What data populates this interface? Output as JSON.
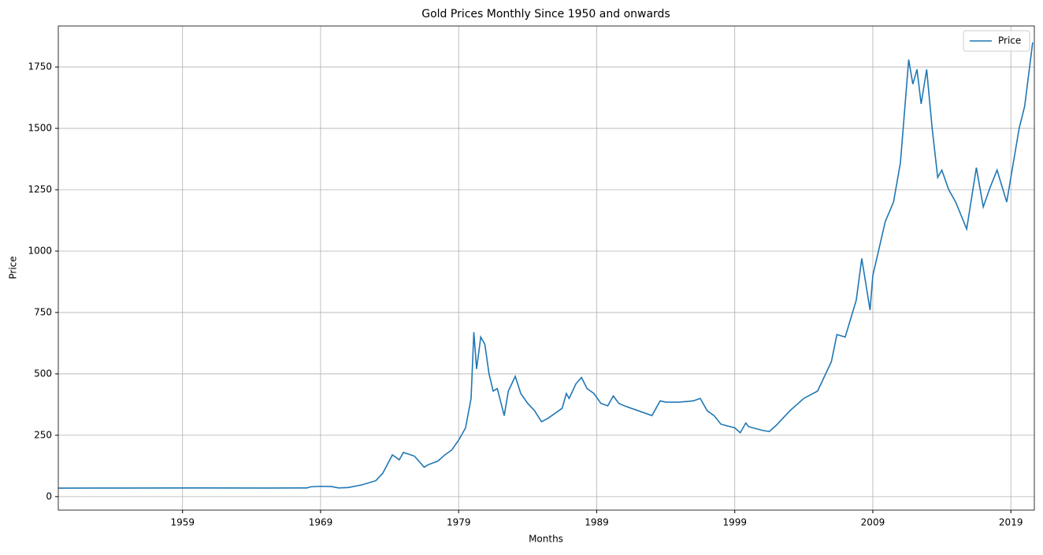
{
  "chart_data": {
    "type": "line",
    "title": "Gold Prices Monthly Since 1950 and onwards",
    "x_label": "Months",
    "y_label": "Price",
    "x": [
      1950,
      1955,
      1960,
      1965,
      1968,
      1968.3,
      1969,
      1969.8,
      1970.3,
      1971,
      1972,
      1973,
      1973.5,
      1974.2,
      1974.7,
      1975,
      1975.8,
      1976.5,
      1976.8,
      1977.5,
      1978,
      1978.5,
      1979,
      1979.5,
      1979.9,
      1980.1,
      1980.3,
      1980.6,
      1980.9,
      1981.2,
      1981.5,
      1981.8,
      1982.3,
      1982.6,
      1983.1,
      1983.5,
      1984,
      1984.5,
      1985,
      1985.5,
      1986,
      1986.5,
      1986.8,
      1987,
      1987.5,
      1987.9,
      1988.3,
      1988.8,
      1989.3,
      1989.8,
      1990.2,
      1990.6,
      1991,
      1992,
      1993,
      1993.6,
      1994,
      1995,
      1996,
      1996.5,
      1997,
      1997.5,
      1998,
      1999,
      1999.4,
      1999.8,
      2000,
      2001,
      2001.5,
      2002,
      2003,
      2004,
      2005,
      2006,
      2006.4,
      2007,
      2007.8,
      2008.2,
      2008.8,
      2009,
      2009.9,
      2010.5,
      2011,
      2011.6,
      2011.9,
      2012.2,
      2012.5,
      2012.9,
      2013.3,
      2013.7,
      2014,
      2014.5,
      2015,
      2015.8,
      2016.5,
      2017,
      2017.5,
      2018,
      2018.7,
      2019,
      2019.6,
      2020,
      2020.58
    ],
    "series": [
      {
        "name": "Price",
        "color": "#1f77b4",
        "values": [
          34.7,
          35,
          35.3,
          35.1,
          35.5,
          40,
          42,
          41,
          35.5,
          37,
          48,
          65,
          95,
          170,
          150,
          180,
          165,
          120,
          130,
          145,
          170,
          190,
          230,
          280,
          400,
          670,
          520,
          650,
          620,
          500,
          430,
          440,
          330,
          430,
          490,
          420,
          380,
          350,
          305,
          320,
          340,
          360,
          420,
          400,
          460,
          485,
          440,
          420,
          380,
          370,
          410,
          380,
          370,
          350,
          330,
          390,
          385,
          385,
          390,
          400,
          350,
          330,
          295,
          280,
          260,
          300,
          285,
          270,
          265,
          290,
          350,
          400,
          430,
          550,
          660,
          650,
          800,
          970,
          760,
          900,
          1120,
          1200,
          1360,
          1780,
          1680,
          1740,
          1600,
          1740,
          1500,
          1300,
          1330,
          1250,
          1200,
          1090,
          1340,
          1180,
          1260,
          1330,
          1200,
          1300,
          1500,
          1590,
          1850
        ]
      }
    ],
    "xlim": [
      1950,
      2020.7
    ],
    "xticks": [
      1959,
      1969,
      1979,
      1989,
      1999,
      2009,
      2019
    ],
    "ylim": [
      -55,
      1917
    ],
    "yticks": [
      0,
      250,
      500,
      750,
      1000,
      1250,
      1500,
      1750
    ],
    "grid": true,
    "legend": "upper right"
  }
}
